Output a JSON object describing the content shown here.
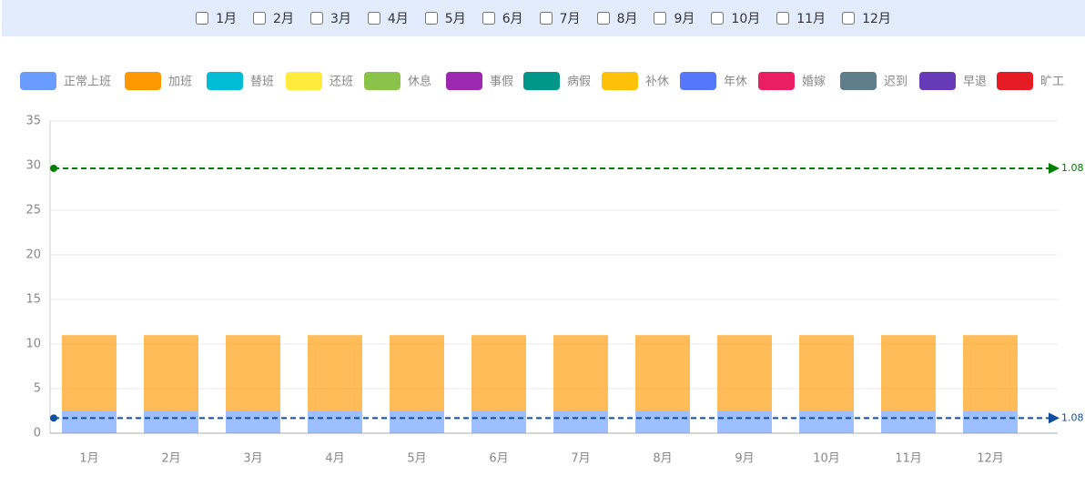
{
  "filters": [
    "1月",
    "2月",
    "3月",
    "4月",
    "5月",
    "6月",
    "7月",
    "8月",
    "9月",
    "10月",
    "11月",
    "12月"
  ],
  "chart_data": {
    "type": "bar",
    "stacked": true,
    "categories": [
      "1月",
      "2月",
      "3月",
      "4月",
      "5月",
      "6月",
      "7月",
      "8月",
      "9月",
      "10月",
      "11月",
      "12月"
    ],
    "series": [
      {
        "name": "正常上班",
        "color": "#6a9cff",
        "values": [
          2.5,
          2.5,
          2.5,
          2.5,
          2.5,
          2.5,
          2.5,
          2.5,
          2.5,
          2.5,
          2.5,
          2.5
        ]
      },
      {
        "name": "加班",
        "color": "#ff9800",
        "values": [
          8.5,
          8.5,
          8.5,
          8.5,
          8.5,
          8.5,
          8.5,
          8.5,
          8.5,
          8.5,
          8.5,
          8.5
        ]
      },
      {
        "name": "替班",
        "color": "#00bcd4",
        "values": [
          0,
          0,
          0,
          0,
          0,
          0,
          0,
          0,
          0,
          0,
          0,
          0
        ]
      },
      {
        "name": "还班",
        "color": "#ffeb3b",
        "values": [
          0,
          0,
          0,
          0,
          0,
          0,
          0,
          0,
          0,
          0,
          0,
          0
        ]
      },
      {
        "name": "休息",
        "color": "#8bc34a",
        "values": [
          0,
          0,
          0,
          0,
          0,
          0,
          0,
          0,
          0,
          0,
          0,
          0
        ]
      },
      {
        "name": "事假",
        "color": "#9c27b0",
        "values": [
          0,
          0,
          0,
          0,
          0,
          0,
          0,
          0,
          0,
          0,
          0,
          0
        ]
      },
      {
        "name": "病假",
        "color": "#009688",
        "values": [
          0,
          0,
          0,
          0,
          0,
          0,
          0,
          0,
          0,
          0,
          0,
          0
        ]
      },
      {
        "name": "补休",
        "color": "#ffc107",
        "values": [
          0,
          0,
          0,
          0,
          0,
          0,
          0,
          0,
          0,
          0,
          0,
          0
        ]
      },
      {
        "name": "年休",
        "color": "#5677fc",
        "values": [
          0,
          0,
          0,
          0,
          0,
          0,
          0,
          0,
          0,
          0,
          0,
          0
        ]
      },
      {
        "name": "婚嫁",
        "color": "#e91e63",
        "values": [
          0,
          0,
          0,
          0,
          0,
          0,
          0,
          0,
          0,
          0,
          0,
          0
        ]
      },
      {
        "name": "迟到",
        "color": "#607d8b",
        "values": [
          0,
          0,
          0,
          0,
          0,
          0,
          0,
          0,
          0,
          0,
          0,
          0
        ]
      },
      {
        "name": "早退",
        "color": "#673ab7",
        "values": [
          0,
          0,
          0,
          0,
          0,
          0,
          0,
          0,
          0,
          0,
          0,
          0
        ]
      },
      {
        "name": "旷工",
        "color": "#e51c23",
        "values": [
          0,
          0,
          0,
          0,
          0,
          0,
          0,
          0,
          0,
          0,
          0,
          0
        ]
      }
    ],
    "mark_lines": [
      {
        "value": 29.7,
        "label": "1.08",
        "color": "#008000"
      },
      {
        "value": 1.7,
        "label": "1.08",
        "color": "#0d4ea0"
      }
    ],
    "ylim": [
      0,
      35
    ],
    "yticks": [
      0,
      5,
      10,
      15,
      20,
      25,
      30,
      35
    ],
    "grid": true
  }
}
